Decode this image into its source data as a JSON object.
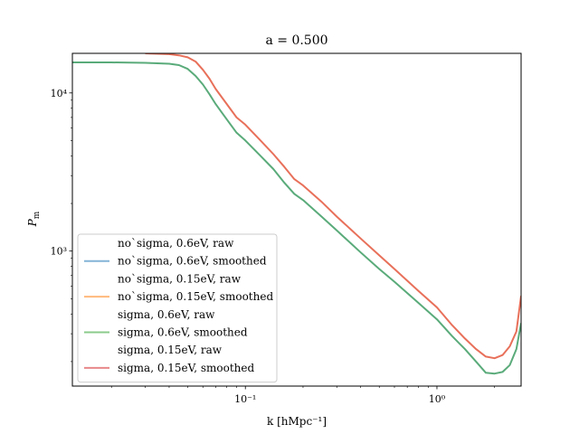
{
  "chart_data": {
    "type": "line",
    "title": "a = 0.500",
    "xlabel": "k [hMpc⁻¹]",
    "ylabel": "P_m",
    "x_scale": "log",
    "y_scale": "log",
    "xlim": [
      0.0125,
      2.75
    ],
    "ylim": [
      140,
      17800
    ],
    "grid": false,
    "legend_placement": "lower-left",
    "x_ticks": [
      {
        "value": 0.1,
        "label": "10⁻¹"
      },
      {
        "value": 1.0,
        "label": "10⁰"
      }
    ],
    "y_ticks": [
      {
        "value": 1000,
        "label": "10³"
      },
      {
        "value": 10000,
        "label": "10⁴"
      }
    ],
    "legend_entries": [
      {
        "label": "no`sigma, 0.6eV, raw",
        "color": "#1f77b4",
        "line": false
      },
      {
        "label": "no`sigma, 0.6eV, smoothed",
        "color": "#1f77b4",
        "line": true
      },
      {
        "label": "no`sigma, 0.15eV, raw",
        "color": "#ff7f0e",
        "line": false
      },
      {
        "label": "no`sigma, 0.15eV, smoothed",
        "color": "#ff7f0e",
        "line": true
      },
      {
        "label": "sigma, 0.6eV, raw",
        "color": "#2ca02c",
        "line": false
      },
      {
        "label": "sigma, 0.6eV, smoothed",
        "color": "#2ca02c",
        "line": true
      },
      {
        "label": "sigma, 0.15eV, raw",
        "color": "#d62728",
        "line": false
      },
      {
        "label": "sigma, 0.15eV, smoothed",
        "color": "#d62728",
        "line": true
      }
    ],
    "series": [
      {
        "name": "sigma, 0.6eV, smoothed",
        "color": "#5aab7a",
        "points": [
          [
            0.0125,
            15600
          ],
          [
            0.02,
            15600
          ],
          [
            0.03,
            15500
          ],
          [
            0.04,
            15300
          ],
          [
            0.045,
            15000
          ],
          [
            0.05,
            14200
          ],
          [
            0.055,
            12800
          ],
          [
            0.06,
            11300
          ],
          [
            0.065,
            9800
          ],
          [
            0.07,
            8500
          ],
          [
            0.08,
            6800
          ],
          [
            0.09,
            5600
          ],
          [
            0.1,
            5000
          ],
          [
            0.12,
            4000
          ],
          [
            0.14,
            3300
          ],
          [
            0.16,
            2700
          ],
          [
            0.18,
            2300
          ],
          [
            0.2,
            2100
          ],
          [
            0.25,
            1650
          ],
          [
            0.3,
            1350
          ],
          [
            0.4,
            980
          ],
          [
            0.5,
            770
          ],
          [
            0.6,
            640
          ],
          [
            0.8,
            470
          ],
          [
            1.0,
            370
          ],
          [
            1.2,
            290
          ],
          [
            1.4,
            240
          ],
          [
            1.6,
            200
          ],
          [
            1.8,
            170
          ],
          [
            2.0,
            168
          ],
          [
            2.2,
            172
          ],
          [
            2.4,
            190
          ],
          [
            2.6,
            240
          ],
          [
            2.75,
            350
          ]
        ]
      },
      {
        "name": "sigma, 0.15eV, smoothed",
        "color": "#e8705a",
        "points": [
          [
            0.03,
            17800
          ],
          [
            0.04,
            17600
          ],
          [
            0.045,
            17300
          ],
          [
            0.05,
            16800
          ],
          [
            0.055,
            15800
          ],
          [
            0.06,
            14000
          ],
          [
            0.065,
            12300
          ],
          [
            0.07,
            10600
          ],
          [
            0.08,
            8500
          ],
          [
            0.09,
            7000
          ],
          [
            0.1,
            6300
          ],
          [
            0.12,
            5000
          ],
          [
            0.14,
            4100
          ],
          [
            0.16,
            3400
          ],
          [
            0.18,
            2850
          ],
          [
            0.2,
            2600
          ],
          [
            0.25,
            2050
          ],
          [
            0.3,
            1650
          ],
          [
            0.4,
            1200
          ],
          [
            0.5,
            940
          ],
          [
            0.6,
            770
          ],
          [
            0.8,
            560
          ],
          [
            1.0,
            440
          ],
          [
            1.2,
            340
          ],
          [
            1.4,
            280
          ],
          [
            1.6,
            240
          ],
          [
            1.8,
            215
          ],
          [
            2.0,
            210
          ],
          [
            2.2,
            220
          ],
          [
            2.4,
            250
          ],
          [
            2.6,
            310
          ],
          [
            2.75,
            520
          ]
        ]
      }
    ]
  }
}
